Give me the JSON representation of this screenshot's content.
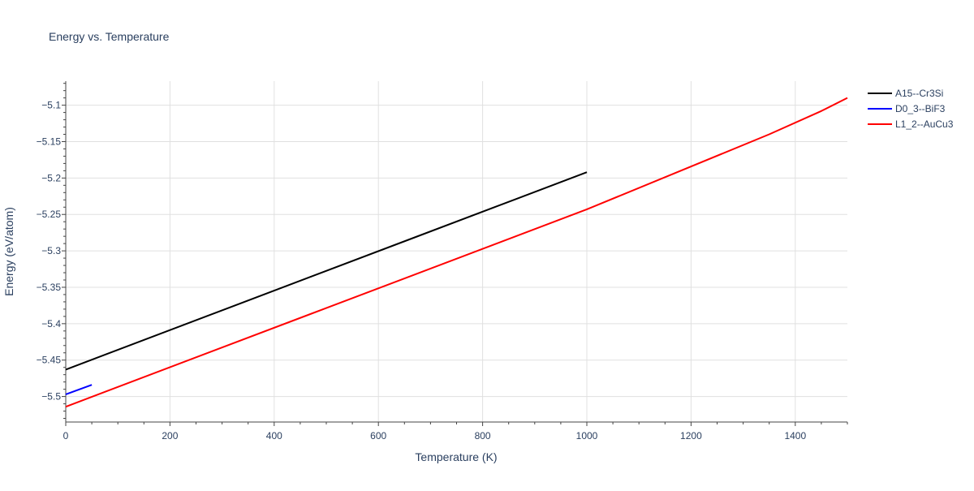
{
  "chart_data": {
    "type": "line",
    "title": "Energy vs. Temperature",
    "xlabel": "Temperature (K)",
    "ylabel": "Energy (eV/atom)",
    "xlim": [
      0,
      1500
    ],
    "ylim": [
      -5.535,
      -5.067
    ],
    "x_ticks": [
      0,
      200,
      400,
      600,
      800,
      1000,
      1200,
      1400
    ],
    "x_tick_labels": [
      "0",
      "200",
      "400",
      "600",
      "800",
      "1000",
      "1200",
      "1400"
    ],
    "y_ticks": [
      -5.1,
      -5.15,
      -5.2,
      -5.25,
      -5.3,
      -5.35,
      -5.4,
      -5.45,
      -5.5
    ],
    "y_tick_labels": [
      "−5.1",
      "−5.15",
      "−5.2",
      "−5.25",
      "−5.3",
      "−5.35",
      "−5.4",
      "−5.45",
      "−5.5"
    ],
    "grid": true,
    "legend_position": "top-right",
    "series": [
      {
        "name": "A15--Cr3Si",
        "color": "#000000",
        "x": [
          0,
          1000
        ],
        "y": [
          -5.463,
          -5.192
        ]
      },
      {
        "name": "D0_3--BiF3",
        "color": "#0000ff",
        "x": [
          0,
          50
        ],
        "y": [
          -5.497,
          -5.484
        ]
      },
      {
        "name": "L1_2--AuCu3",
        "color": "#ff0000",
        "x": [
          0,
          1000,
          1350,
          1450,
          1500
        ],
        "y": [
          -5.514,
          -5.243,
          -5.14,
          -5.108,
          -5.09
        ]
      }
    ]
  }
}
